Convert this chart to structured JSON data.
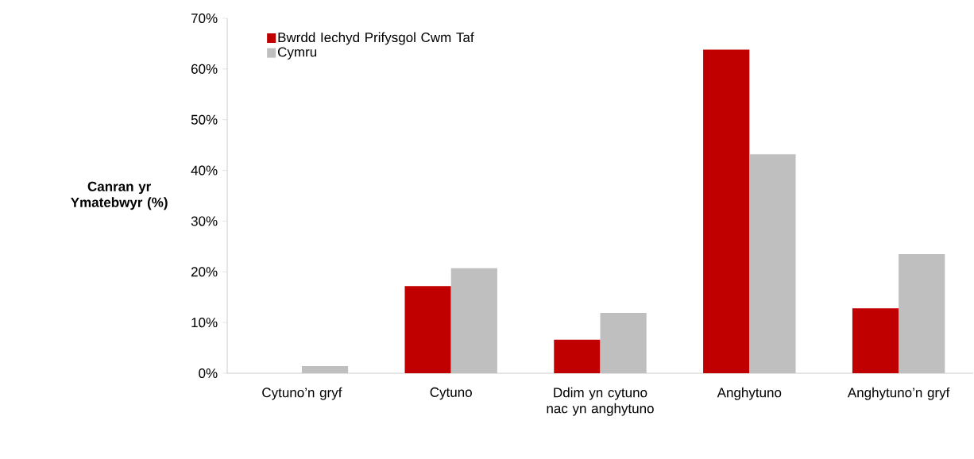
{
  "chart_data": {
    "type": "bar",
    "ylabel": "Canran yr Ymatebwyr (%)",
    "categories": [
      "Cytuno’n gryf",
      "Cytuno",
      "Ddim yn cytuno nac yn anghytuno",
      "Anghytuno",
      "Anghytuno’n gryf"
    ],
    "series": [
      {
        "name": "Bwrdd Iechyd Prifysgol Cwm Taf",
        "color": "#c00000",
        "values": [
          0,
          17.2,
          6.6,
          63.8,
          12.8
        ]
      },
      {
        "name": "Cymru",
        "color": "#bfbfbf",
        "values": [
          1.4,
          20.7,
          11.9,
          43.2,
          23.5
        ]
      }
    ],
    "ylim": [
      0,
      70
    ],
    "yticks": [
      {
        "value": 0,
        "label": "0%"
      },
      {
        "value": 10,
        "label": "10%"
      },
      {
        "value": 20,
        "label": "20%"
      },
      {
        "value": 30,
        "label": "30%"
      },
      {
        "value": 40,
        "label": "40%"
      },
      {
        "value": 50,
        "label": "50%"
      },
      {
        "value": 60,
        "label": "60%"
      },
      {
        "value": 70,
        "label": "70%"
      }
    ],
    "legend": "top left"
  }
}
